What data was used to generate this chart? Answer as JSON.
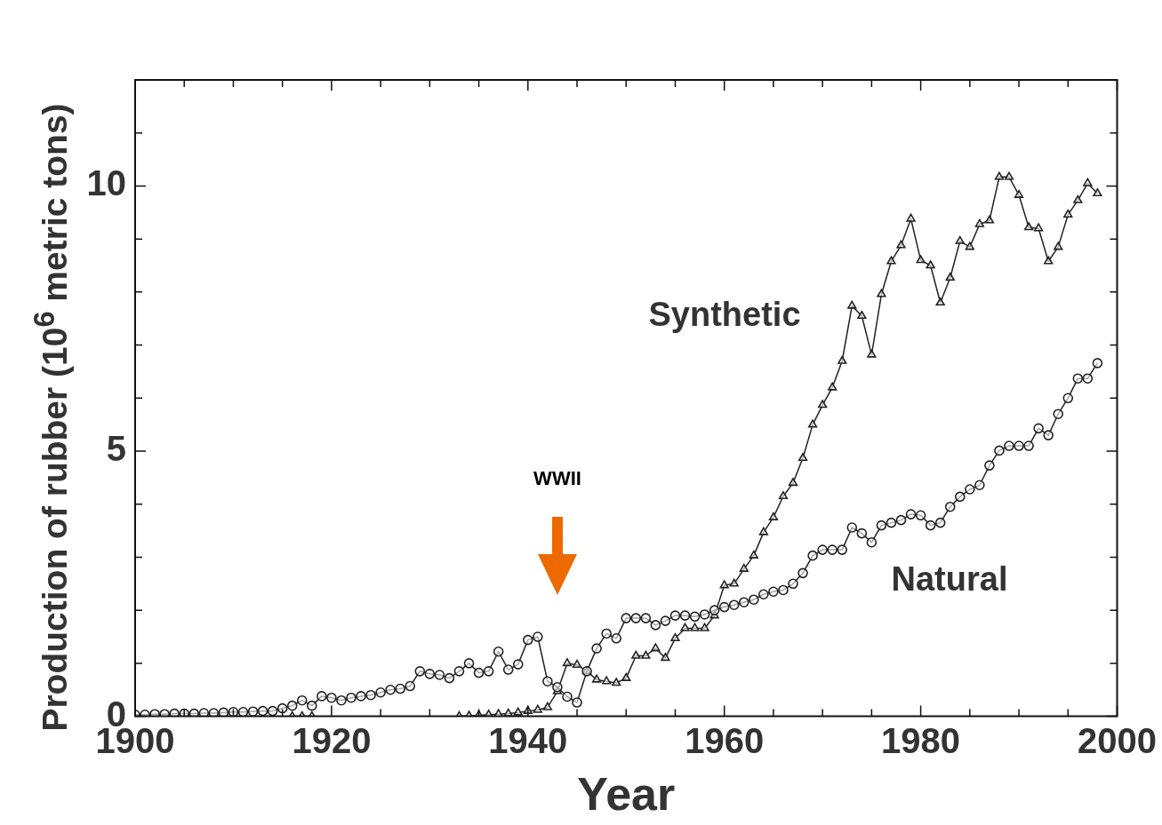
{
  "chart_data": {
    "type": "line",
    "xlabel": "Year",
    "ylabel": "Production of rubber (10$^{6}$ metric tons)",
    "x": [
      1900,
      1901,
      1902,
      1903,
      1904,
      1905,
      1906,
      1907,
      1908,
      1909,
      1910,
      1911,
      1912,
      1913,
      1914,
      1915,
      1916,
      1917,
      1918,
      1919,
      1920,
      1921,
      1922,
      1923,
      1924,
      1925,
      1926,
      1927,
      1928,
      1929,
      1930,
      1931,
      1932,
      1933,
      1934,
      1935,
      1936,
      1937,
      1938,
      1939,
      1940,
      1941,
      1942,
      1943,
      1944,
      1945,
      1946,
      1947,
      1948,
      1949,
      1950,
      1951,
      1952,
      1953,
      1954,
      1955,
      1956,
      1957,
      1958,
      1959,
      1960,
      1961,
      1962,
      1963,
      1964,
      1965,
      1966,
      1967,
      1968,
      1969,
      1970,
      1971,
      1972,
      1973,
      1974,
      1975,
      1976,
      1977,
      1978,
      1979,
      1980,
      1981,
      1982,
      1983,
      1984,
      1985,
      1986,
      1987,
      1988,
      1989,
      1990,
      1991,
      1992,
      1993,
      1994,
      1995,
      1996,
      1997,
      1998
    ],
    "series": [
      {
        "name": "Natural",
        "color": "#222222",
        "marker": "circle",
        "values": [
          0.03,
          0.03,
          0.04,
          0.04,
          0.05,
          0.05,
          0.05,
          0.06,
          0.06,
          0.07,
          0.08,
          0.08,
          0.09,
          0.1,
          0.1,
          0.15,
          0.2,
          0.3,
          0.2,
          0.38,
          0.35,
          0.3,
          0.35,
          0.38,
          0.4,
          0.45,
          0.5,
          0.52,
          0.57,
          0.85,
          0.8,
          0.78,
          0.72,
          0.85,
          1.0,
          0.82,
          0.85,
          1.22,
          0.88,
          0.98,
          1.44,
          1.5,
          0.66,
          0.55,
          0.37,
          0.26,
          0.85,
          1.28,
          1.56,
          1.47,
          1.85,
          1.85,
          1.85,
          1.72,
          1.8,
          1.9,
          1.9,
          1.88,
          1.92,
          2.0,
          2.06,
          2.1,
          2.15,
          2.2,
          2.3,
          2.35,
          2.38,
          2.5,
          2.7,
          3.03,
          3.14,
          3.14,
          3.14,
          3.56,
          3.45,
          3.28,
          3.6,
          3.65,
          3.7,
          3.81,
          3.79,
          3.6,
          3.65,
          3.95,
          4.14,
          4.28,
          4.36,
          4.73,
          5.01,
          5.1,
          5.1,
          5.1,
          5.43,
          5.3,
          5.7,
          6.0,
          6.37,
          6.37,
          6.66
        ]
      },
      {
        "name": "Synthetic",
        "color": "#222222",
        "marker": "triangle",
        "values": [
          null,
          null,
          null,
          null,
          null,
          null,
          null,
          null,
          null,
          null,
          null,
          null,
          null,
          null,
          null,
          null,
          0.0,
          0.0,
          0.0,
          null,
          null,
          null,
          null,
          null,
          null,
          null,
          null,
          null,
          null,
          null,
          null,
          null,
          null,
          0.0,
          0.01,
          0.02,
          0.03,
          0.04,
          0.05,
          0.07,
          0.1,
          0.12,
          0.17,
          0.47,
          1.0,
          0.97,
          0.85,
          0.69,
          0.66,
          0.63,
          0.72,
          1.14,
          1.14,
          1.28,
          1.1,
          1.47,
          1.66,
          1.66,
          1.66,
          1.9,
          2.47,
          2.5,
          2.78,
          3.03,
          3.47,
          3.75,
          4.15,
          4.4,
          4.87,
          5.5,
          5.87,
          6.2,
          6.7,
          7.74,
          7.55,
          6.82,
          7.96,
          8.58,
          8.88,
          9.38,
          8.6,
          8.5,
          7.8,
          8.27,
          8.96,
          8.85,
          9.28,
          9.35,
          10.17,
          10.17,
          9.83,
          9.22,
          9.2,
          8.58,
          8.85,
          9.46,
          9.73,
          10.05,
          9.86
        ]
      }
    ],
    "xlim": [
      1900,
      2000
    ],
    "xticks": [
      1900,
      {
        "value": 1905,
        "label": null
      },
      {
        "value": 1910,
        "label": null
      },
      {
        "value": 1915,
        "label": null
      },
      1920,
      {
        "value": 1925,
        "label": null
      },
      {
        "value": 1930,
        "label": null
      },
      {
        "value": 1935,
        "label": null
      },
      1940,
      {
        "value": 1945,
        "label": null
      },
      {
        "value": 1950,
        "label": null
      },
      {
        "value": 1955,
        "label": null
      },
      1960,
      {
        "value": 1965,
        "label": null
      },
      {
        "value": 1970,
        "label": null
      },
      {
        "value": 1975,
        "label": null
      },
      1980,
      {
        "value": 1985,
        "label": null
      },
      {
        "value": 1990,
        "label": null
      },
      {
        "value": 1995,
        "label": null
      },
      2000
    ],
    "ylim": [
      0,
      12
    ],
    "yticks": [
      0,
      {
        "value": 1,
        "label": null
      },
      {
        "value": 2,
        "label": null
      },
      {
        "value": 3,
        "label": null
      },
      {
        "value": 4,
        "label": null
      },
      5,
      {
        "value": 6,
        "label": null
      },
      {
        "value": 7,
        "label": null
      },
      {
        "value": 8,
        "label": null
      },
      {
        "value": 9,
        "label": null
      },
      10,
      {
        "value": 11,
        "label": null
      },
      {
        "value": 12,
        "label": null
      }
    ],
    "annotations": [
      "WWII"
    ],
    "grid": false,
    "legend": false
  }
}
